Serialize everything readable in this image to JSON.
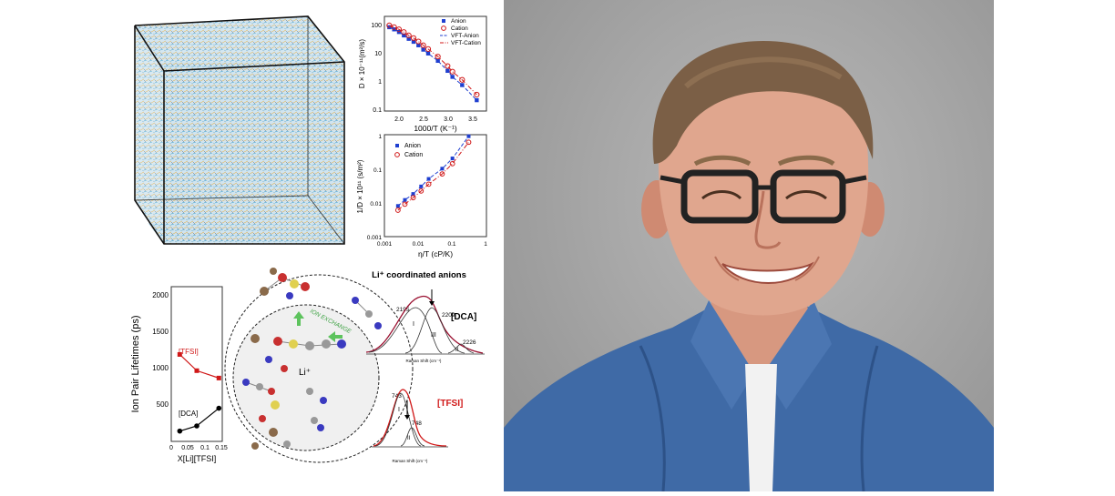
{
  "top_chart": {
    "ylabel": "D × 10⁻¹¹(m²/s)",
    "xlabel": "1000/T (K⁻¹)",
    "x_ticks": [
      "2.0",
      "2.5",
      "3.0",
      "3.5"
    ],
    "y_ticks": [
      "100",
      "10",
      "1",
      "0.1"
    ],
    "legend": [
      "Anion",
      "Cation",
      "VFT-Anion",
      "VFT-Cation"
    ]
  },
  "middle_chart": {
    "ylabel": "1/D × 10¹¹ (s/m²)",
    "xlabel": "η/T (cP/K)",
    "x_ticks": [
      "0.001",
      "0.01",
      "0.1",
      "1"
    ],
    "y_ticks": [
      "1",
      "0.1",
      "0.01",
      "0.001"
    ],
    "legend": [
      "Anion",
      "Cation"
    ]
  },
  "lifetime_chart": {
    "ylabel": "Ion Pair Lifetimes (ps)",
    "xlabel": "X[Li][TFSI]",
    "y_ticks": [
      "2000",
      "1500",
      "1000",
      "500"
    ],
    "x_ticks": [
      "0",
      "0.05",
      "0.1",
      "0.15"
    ],
    "series_labels": [
      "[TFSI]",
      "[DCA]"
    ]
  },
  "schematic": {
    "ion_exchange": "ION EXCHANGE",
    "li_label": "Li⁺"
  },
  "raman": {
    "title": "Li⁺ coordinated anions",
    "dca_label": "[DCA]",
    "tfsi_label": "[TFSI]",
    "peaks_dca": [
      "2195",
      "2209",
      "2226"
    ],
    "peaks_tfsi": [
      "743",
      "748"
    ],
    "roman": [
      "I",
      "II",
      "III"
    ],
    "xaxis": "Raman Shift (cm⁻¹)"
  },
  "chart_data": [
    {
      "type": "scatter",
      "xlabel": "1000/T (K⁻¹)",
      "ylabel": "D × 10⁻¹¹(m²/s)",
      "yscale": "log",
      "xlim": [
        1.7,
        3.8
      ],
      "ylim": [
        0.1,
        300
      ],
      "series": [
        {
          "name": "Anion",
          "x": [
            1.8,
            1.9,
            2.0,
            2.1,
            2.2,
            2.3,
            2.4,
            2.5,
            2.6,
            2.8,
            3.0,
            3.1,
            3.3,
            3.6
          ],
          "y": [
            120,
            100,
            80,
            60,
            45,
            35,
            26,
            18,
            13,
            7,
            3,
            1.8,
            0.9,
            0.25
          ]
        },
        {
          "name": "Cation",
          "x": [
            1.8,
            1.9,
            2.0,
            2.1,
            2.2,
            2.3,
            2.4,
            2.5,
            2.6,
            2.8,
            3.0,
            3.1,
            3.3,
            3.6
          ],
          "y": [
            140,
            120,
            100,
            80,
            60,
            48,
            36,
            26,
            19,
            10,
            4.5,
            2.8,
            1.4,
            0.4
          ]
        }
      ],
      "legend_position": "top-right"
    },
    {
      "type": "scatter",
      "xlabel": "η/T (cP/K)",
      "ylabel": "1/D × 10¹¹ (s/m²)",
      "xscale": "log",
      "yscale": "log",
      "xlim": [
        0.001,
        1
      ],
      "ylim": [
        0.001,
        1
      ],
      "series": [
        {
          "name": "Anion",
          "x": [
            0.0025,
            0.004,
            0.007,
            0.012,
            0.02,
            0.05,
            0.1,
            0.3
          ],
          "y": [
            0.008,
            0.012,
            0.018,
            0.03,
            0.05,
            0.1,
            0.2,
            0.9
          ]
        },
        {
          "name": "Cation",
          "x": [
            0.0025,
            0.004,
            0.007,
            0.012,
            0.02,
            0.05,
            0.1,
            0.3
          ],
          "y": [
            0.006,
            0.009,
            0.014,
            0.022,
            0.035,
            0.07,
            0.14,
            0.6
          ]
        }
      ],
      "legend_position": "top-left"
    },
    {
      "type": "line",
      "xlabel": "X[Li][TFSI]",
      "ylabel": "Ion Pair Lifetimes (ps)",
      "xlim": [
        0,
        0.15
      ],
      "ylim": [
        0,
        2100
      ],
      "series": [
        {
          "name": "[TFSI]",
          "x": [
            0.025,
            0.075,
            0.14
          ],
          "y": [
            1180,
            960,
            860
          ]
        },
        {
          "name": "[DCA]",
          "x": [
            0.025,
            0.075,
            0.14
          ],
          "y": [
            140,
            210,
            450
          ]
        }
      ]
    }
  ]
}
